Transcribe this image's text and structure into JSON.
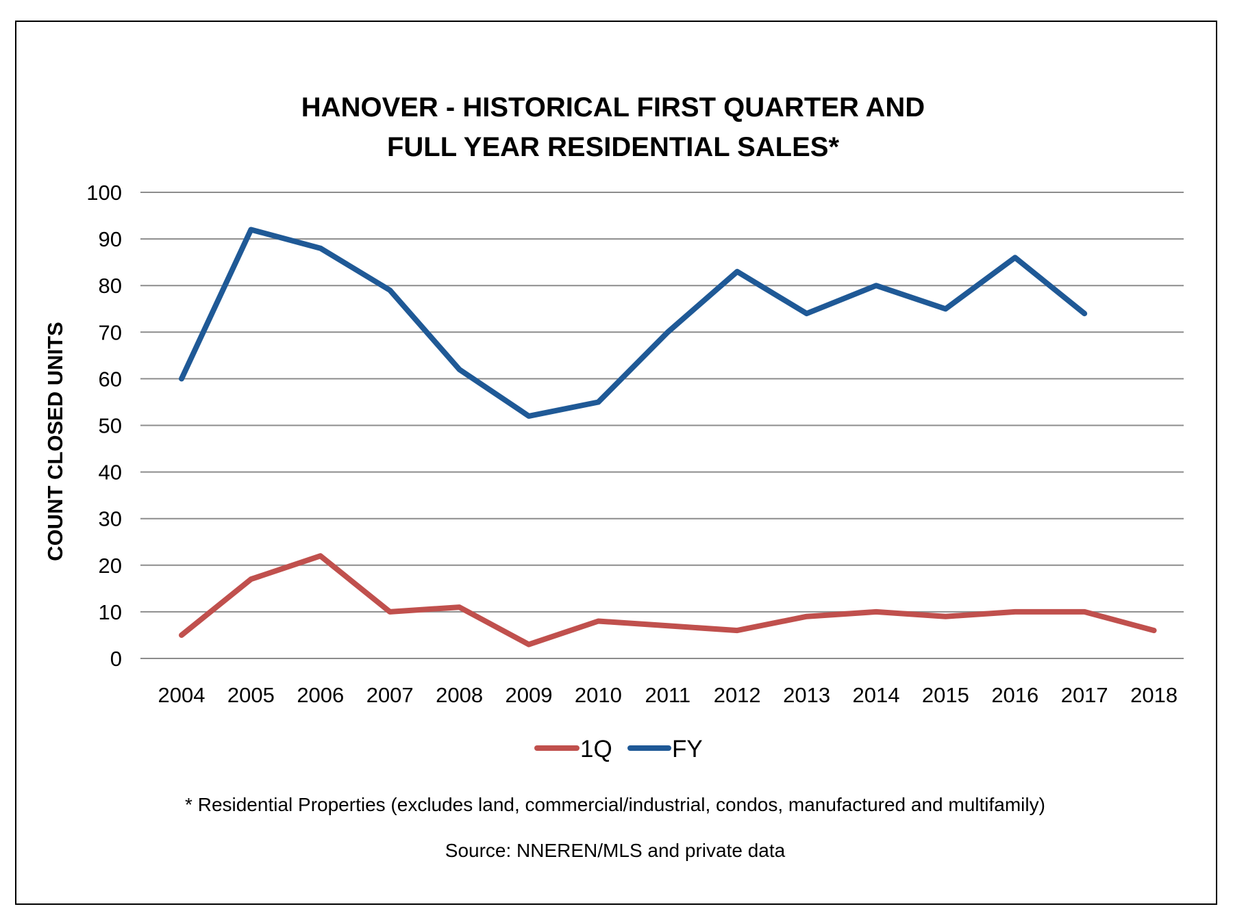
{
  "chart_data": {
    "type": "line",
    "title_lines": [
      "HANOVER - HISTORICAL FIRST QUARTER AND",
      "FULL YEAR RESIDENTIAL SALES*"
    ],
    "ylabel": "COUNT CLOSED UNITS",
    "xlabel": "",
    "ylim": [
      0,
      100
    ],
    "yticks": [
      0,
      10,
      20,
      30,
      40,
      50,
      60,
      70,
      80,
      90,
      100
    ],
    "categories": [
      "2004",
      "2005",
      "2006",
      "2007",
      "2008",
      "2009",
      "2010",
      "2011",
      "2012",
      "2013",
      "2014",
      "2015",
      "2016",
      "2017",
      "2018"
    ],
    "grid": true,
    "legend_position": "bottom",
    "series": [
      {
        "name": "1Q",
        "color": "#c0504d",
        "values": [
          5,
          17,
          22,
          10,
          11,
          3,
          8,
          7,
          6,
          9,
          10,
          9,
          10,
          10,
          6
        ]
      },
      {
        "name": "FY",
        "color": "#1f5996",
        "values": [
          60,
          92,
          88,
          79,
          62,
          52,
          55,
          70,
          83,
          74,
          80,
          75,
          86,
          74,
          null
        ]
      }
    ],
    "footnote": "* Residential Properties (excludes land, commercial/industrial, condos, manufactured and multifamily)",
    "source": "Source: NNEREN/MLS and private data"
  }
}
